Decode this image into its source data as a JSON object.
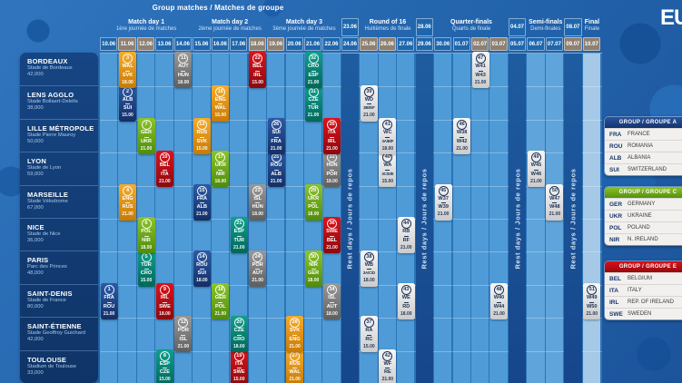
{
  "title": {
    "schedule": "Group matches / Matches de groupe",
    "logo": "EU"
  },
  "rest_text": "Rest days / Jours de repos",
  "phases": [
    {
      "name": "Match day 1",
      "sub": "1ère journée de matches",
      "from": 1,
      "to": 5
    },
    {
      "name": "Match day 2",
      "sub": "2ème journée de matches",
      "from": 6,
      "to": 9
    },
    {
      "name": "Match day 3",
      "sub": "3ème journée de matches",
      "from": 10,
      "to": 13
    },
    {
      "name": "Round of 16",
      "sub": "Huitièmes de finale",
      "from": 15,
      "to": 17
    },
    {
      "name": "Quarter-finals",
      "sub": "Quarts de finale",
      "from": 19,
      "to": 22
    },
    {
      "name": "Semi-finals",
      "sub": "Demi-finales",
      "from": 24,
      "to": 25
    },
    {
      "name": "Final",
      "sub": "Finale",
      "from": 27,
      "to": 27
    }
  ],
  "columns": [
    {
      "type": "day",
      "date": "10.06",
      "weekend": false
    },
    {
      "type": "day",
      "date": "11.06",
      "weekend": true
    },
    {
      "type": "day",
      "date": "12.06",
      "weekend": true
    },
    {
      "type": "day",
      "date": "13.06",
      "weekend": false
    },
    {
      "type": "day",
      "date": "14.06",
      "weekend": false
    },
    {
      "type": "day",
      "date": "15.06",
      "weekend": false
    },
    {
      "type": "day",
      "date": "16.06",
      "weekend": false
    },
    {
      "type": "day",
      "date": "17.06",
      "weekend": false
    },
    {
      "type": "day",
      "date": "18.06",
      "weekend": true
    },
    {
      "type": "day",
      "date": "19.06",
      "weekend": true
    },
    {
      "type": "day",
      "date": "20.06",
      "weekend": false
    },
    {
      "type": "day",
      "date": "21.06",
      "weekend": false
    },
    {
      "type": "day",
      "date": "22.06",
      "weekend": false
    },
    {
      "type": "rest",
      "dates": [
        {
          "date": "23.06",
          "weekend": false
        },
        {
          "date": "24.06",
          "weekend": false
        }
      ]
    },
    {
      "type": "day",
      "date": "25.06",
      "weekend": true
    },
    {
      "type": "day",
      "date": "26.06",
      "weekend": true
    },
    {
      "type": "day",
      "date": "27.06",
      "weekend": false
    },
    {
      "type": "rest",
      "dates": [
        {
          "date": "28.06",
          "weekend": false
        },
        {
          "date": "29.06",
          "weekend": false
        }
      ]
    },
    {
      "type": "day",
      "date": "30.06",
      "weekend": false
    },
    {
      "type": "day",
      "date": "01.07",
      "weekend": false
    },
    {
      "type": "day",
      "date": "02.07",
      "weekend": true
    },
    {
      "type": "day",
      "date": "03.07",
      "weekend": true
    },
    {
      "type": "rest",
      "dates": [
        {
          "date": "04.07",
          "weekend": false
        },
        {
          "date": "05.07",
          "weekend": false
        }
      ]
    },
    {
      "type": "day",
      "date": "06.07",
      "weekend": false
    },
    {
      "type": "day",
      "date": "07.07",
      "weekend": false
    },
    {
      "type": "rest",
      "dates": [
        {
          "date": "08.07",
          "weekend": false
        },
        {
          "date": "09.07",
          "weekend": true
        }
      ]
    },
    {
      "type": "day",
      "date": "10.07",
      "weekend": true
    }
  ],
  "venues": [
    {
      "city": "BORDEAUX",
      "stadium": "Stade de Bordeaux",
      "capacity": "42,000"
    },
    {
      "city": "LENS AGGLO",
      "stadium": "Stade Bollaert-Delelis",
      "capacity": "38,000"
    },
    {
      "city": "LILLE MÉTROPOLE",
      "stadium": "Stade Pierre Mauroy",
      "capacity": "50,000"
    },
    {
      "city": "LYON",
      "stadium": "Stade de Lyon",
      "capacity": "59,000"
    },
    {
      "city": "MARSEILLE",
      "stadium": "Stade Vélodrome",
      "capacity": "67,000"
    },
    {
      "city": "NICE",
      "stadium": "Stade de Nice",
      "capacity": "36,000"
    },
    {
      "city": "PARIS",
      "stadium": "Parc des Princes",
      "capacity": "48,000"
    },
    {
      "city": "SAINT-DENIS",
      "stadium": "Stade de France",
      "capacity": "80,000"
    },
    {
      "city": "SAINT-ÉTIENNE",
      "stadium": "Stade Geoffroy Guichard",
      "capacity": "42,000"
    },
    {
      "city": "TOULOUSE",
      "stadium": "Stadium de Toulouse",
      "capacity": "33,000"
    }
  ],
  "matches": [
    {
      "n": 1,
      "home": "FRA",
      "away": "ROU",
      "time": "21.00",
      "group": "A",
      "venue": 7,
      "col": 1
    },
    {
      "n": 2,
      "home": "ALB",
      "away": "SUI",
      "time": "15.00",
      "group": "A",
      "venue": 1,
      "col": 2
    },
    {
      "n": 3,
      "home": "WAL",
      "away": "SVK",
      "time": "18.00",
      "group": "B",
      "venue": 0,
      "col": 2
    },
    {
      "n": 4,
      "home": "ENG",
      "away": "RUS",
      "time": "21.00",
      "group": "B",
      "venue": 4,
      "col": 2
    },
    {
      "n": 5,
      "home": "TUR",
      "away": "CRO",
      "time": "15.00",
      "group": "D",
      "venue": 6,
      "col": 3
    },
    {
      "n": 6,
      "home": "POL",
      "away": "NIR",
      "time": "18.00",
      "group": "C",
      "venue": 5,
      "col": 3
    },
    {
      "n": 7,
      "home": "GER",
      "away": "UKR",
      "time": "21.00",
      "group": "C",
      "venue": 2,
      "col": 3
    },
    {
      "n": 8,
      "home": "ESP",
      "away": "CZE",
      "time": "15.00",
      "group": "D",
      "venue": 9,
      "col": 4
    },
    {
      "n": 9,
      "home": "IRL",
      "away": "SWE",
      "time": "18.00",
      "group": "E",
      "venue": 7,
      "col": 4
    },
    {
      "n": 10,
      "home": "BEL",
      "away": "ITA",
      "time": "21.00",
      "group": "E",
      "venue": 3,
      "col": 4
    },
    {
      "n": 11,
      "home": "AUT",
      "away": "HUN",
      "time": "18.00",
      "group": "F",
      "venue": 0,
      "col": 5
    },
    {
      "n": 12,
      "home": "POR",
      "away": "ISL",
      "time": "21.00",
      "group": "F",
      "venue": 8,
      "col": 5
    },
    {
      "n": 13,
      "home": "RUS",
      "away": "SVK",
      "time": "15.00",
      "group": "B",
      "venue": 2,
      "col": 6
    },
    {
      "n": 14,
      "home": "ROU",
      "away": "SUI",
      "time": "18.00",
      "group": "A",
      "venue": 6,
      "col": 6
    },
    {
      "n": 15,
      "home": "FRA",
      "away": "ALB",
      "time": "21.00",
      "group": "A",
      "venue": 4,
      "col": 6
    },
    {
      "n": 16,
      "home": "ENG",
      "away": "WAL",
      "time": "15.00",
      "group": "B",
      "venue": 1,
      "col": 7
    },
    {
      "n": 17,
      "home": "UKR",
      "away": "NIR",
      "time": "18.00",
      "group": "C",
      "venue": 3,
      "col": 7
    },
    {
      "n": 18,
      "home": "GER",
      "away": "POL",
      "time": "21.00",
      "group": "C",
      "venue": 7,
      "col": 7
    },
    {
      "n": 19,
      "home": "ITA",
      "away": "SWE",
      "time": "15.00",
      "group": "E",
      "venue": 9,
      "col": 8
    },
    {
      "n": 20,
      "home": "CZE",
      "away": "CRO",
      "time": "18.00",
      "group": "D",
      "venue": 8,
      "col": 8
    },
    {
      "n": 21,
      "home": "ESP",
      "away": "TUR",
      "time": "21.00",
      "group": "D",
      "venue": 5,
      "col": 8
    },
    {
      "n": 22,
      "home": "BEL",
      "away": "IRL",
      "time": "15.00",
      "group": "E",
      "venue": 0,
      "col": 9
    },
    {
      "n": 23,
      "home": "ISL",
      "away": "HUN",
      "time": "18.00",
      "group": "F",
      "venue": 4,
      "col": 9
    },
    {
      "n": 24,
      "home": "POR",
      "away": "AUT",
      "time": "21.00",
      "group": "F",
      "venue": 6,
      "col": 9
    },
    {
      "n": 25,
      "home": "ROU",
      "away": "ALB",
      "time": "21.00",
      "group": "A",
      "venue": 3,
      "col": 10
    },
    {
      "n": 26,
      "home": "SUI",
      "away": "FRA",
      "time": "21.00",
      "group": "A",
      "venue": 2,
      "col": 10
    },
    {
      "n": 27,
      "home": "RUS",
      "away": "WAL",
      "time": "21.00",
      "group": "B",
      "venue": 9,
      "col": 11
    },
    {
      "n": 28,
      "home": "SVK",
      "away": "ENG",
      "time": "21.00",
      "group": "B",
      "venue": 8,
      "col": 11
    },
    {
      "n": 29,
      "home": "UKR",
      "away": "POL",
      "time": "18.00",
      "group": "C",
      "venue": 4,
      "col": 12
    },
    {
      "n": 30,
      "home": "NIR",
      "away": "GER",
      "time": "18.00",
      "group": "C",
      "venue": 6,
      "col": 12
    },
    {
      "n": 31,
      "home": "CZE",
      "away": "TUR",
      "time": "21.00",
      "group": "D",
      "venue": 1,
      "col": 12
    },
    {
      "n": 32,
      "home": "CRO",
      "away": "ESP",
      "time": "21.00",
      "group": "D",
      "venue": 0,
      "col": 12
    },
    {
      "n": 33,
      "home": "HUN",
      "away": "POR",
      "time": "18.00",
      "group": "F",
      "venue": 3,
      "col": 13
    },
    {
      "n": 34,
      "home": "ISL",
      "away": "AUT",
      "time": "18.00",
      "group": "F",
      "venue": 7,
      "col": 13
    },
    {
      "n": 35,
      "home": "ITA",
      "away": "IRL",
      "time": "21.00",
      "group": "E",
      "venue": 2,
      "col": 13
    },
    {
      "n": 36,
      "home": "SWE",
      "away": "BEL",
      "time": "21.00",
      "group": "E",
      "venue": 5,
      "col": 13
    },
    {
      "n": 37,
      "home": "RA",
      "away": "RC",
      "time": "15.00",
      "group": "KO",
      "venue": 8,
      "col": 15
    },
    {
      "n": 38,
      "home": "WB",
      "away": "3A/C/D",
      "time": "18.00",
      "group": "KO",
      "venue": 6,
      "col": 15
    },
    {
      "n": 39,
      "home": "WD",
      "away": "3B/E/F",
      "time": "21.00",
      "group": "KO",
      "venue": 1,
      "col": 15
    },
    {
      "n": 40,
      "home": "WA",
      "away": "3C/D/E",
      "time": "15.00",
      "group": "KO",
      "venue": 3,
      "col": 16
    },
    {
      "n": 41,
      "home": "WC",
      "away": "3A/B/F",
      "time": "18.00",
      "group": "KO",
      "venue": 2,
      "col": 16
    },
    {
      "n": 42,
      "home": "WF",
      "away": "RE",
      "time": "21.00",
      "group": "KO",
      "venue": 9,
      "col": 16
    },
    {
      "n": 43,
      "home": "WE",
      "away": "RD",
      "time": "18.00",
      "group": "KO",
      "venue": 7,
      "col": 17
    },
    {
      "n": 44,
      "home": "RB",
      "away": "RF",
      "time": "21.00",
      "group": "KO",
      "venue": 5,
      "col": 17
    },
    {
      "n": 45,
      "home": "W37",
      "away": "W39",
      "time": "21.00",
      "group": "KO",
      "venue": 4,
      "col": 19
    },
    {
      "n": 46,
      "home": "W38",
      "away": "W42",
      "time": "21.00",
      "group": "KO",
      "venue": 2,
      "col": 20
    },
    {
      "n": 47,
      "home": "W41",
      "away": "W43",
      "time": "21.00",
      "group": "KO",
      "venue": 0,
      "col": 21
    },
    {
      "n": 48,
      "home": "W40",
      "away": "W44",
      "time": "21.00",
      "group": "KO",
      "venue": 7,
      "col": 22
    },
    {
      "n": 49,
      "home": "W45",
      "away": "W46",
      "time": "21.00",
      "group": "KO",
      "venue": 3,
      "col": 24
    },
    {
      "n": 50,
      "home": "W47",
      "away": "W48",
      "time": "21.00",
      "group": "KO",
      "venue": 4,
      "col": 25
    },
    {
      "n": 51,
      "home": "W49",
      "away": "W50",
      "time": "21.00",
      "group": "KO",
      "venue": 7,
      "col": 27
    }
  ],
  "legend": [
    {
      "key": "A",
      "title": "GROUP / GROUPE A",
      "teams": [
        {
          "code": "FRA",
          "name": "FRANCE"
        },
        {
          "code": "ROU",
          "name": "ROMANIA"
        },
        {
          "code": "ALB",
          "name": "ALBANIA"
        },
        {
          "code": "SUI",
          "name": "SWITZERLAND"
        }
      ]
    },
    {
      "key": "C",
      "title": "GROUP / GROUPE C",
      "teams": [
        {
          "code": "GER",
          "name": "GERMANY"
        },
        {
          "code": "UKR",
          "name": "UKRAINE"
        },
        {
          "code": "POL",
          "name": "POLAND"
        },
        {
          "code": "NIR",
          "name": "N. IRELAND"
        }
      ]
    },
    {
      "key": "E",
      "title": "GROUP / GROUPE E",
      "teams": [
        {
          "code": "BEL",
          "name": "BELGIUM"
        },
        {
          "code": "ITA",
          "name": "ITALY"
        },
        {
          "code": "IRL",
          "name": "REP. OF IRELAND"
        },
        {
          "code": "SWE",
          "name": "SWEDEN"
        }
      ]
    }
  ],
  "colors": {
    "groups": {
      "A": [
        "#2c5aa8",
        "#142f66"
      ],
      "B": [
        "#f6ac2a",
        "#c97a03"
      ],
      "C": [
        "#8cc42a",
        "#4f8c0c"
      ],
      "D": [
        "#0fa08e",
        "#00685a"
      ],
      "E": [
        "#dd1219",
        "#8c090e"
      ],
      "F": [
        "#999999",
        "#5f5f5f"
      ],
      "KO": [
        "#f7f7f7",
        "#cbcbcb"
      ]
    },
    "ko_text": "#1b3055",
    "date_weekday": "#1e67ae",
    "date_weekend": "#8d8173",
    "legend_headers": {
      "A": [
        "#2a55a0",
        "#15336c"
      ],
      "C": [
        "#8cc42a",
        "#55910d"
      ],
      "E": [
        "#d9121a",
        "#94090e"
      ]
    }
  }
}
